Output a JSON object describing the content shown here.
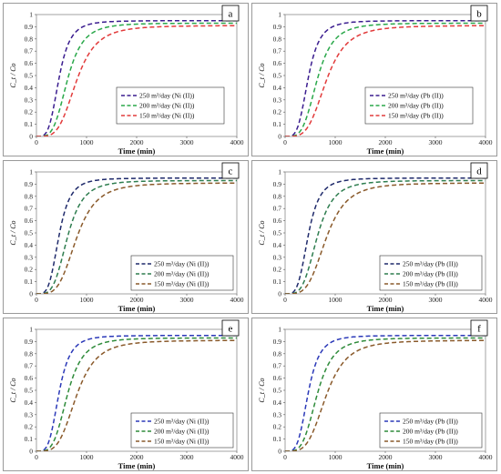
{
  "figure": {
    "panels_count": 6
  },
  "chart_data": [
    {
      "type": "line",
      "panel_label": "a",
      "ylabel": "C_t / Co",
      "xlabel": "Time (min)",
      "xlim": [
        0,
        4000
      ],
      "ylim": [
        0,
        1
      ],
      "xticks": [
        "0",
        "1000",
        "2000",
        "3000",
        "4000"
      ],
      "yticks": [
        "0",
        "0.1",
        "0.2",
        "0.3",
        "0.4",
        "0.5",
        "0.6",
        "0.7",
        "0.8",
        "0.9",
        "1"
      ],
      "legend_position": "right-middle",
      "series": [
        {
          "name": "250 m³/day (Ni (II))",
          "color": "#3b1d8f",
          "plateau": 0.95,
          "midpoint": 450
        },
        {
          "name": "200 m³/day (Ni (II))",
          "color": "#2aa84a",
          "plateau": 0.93,
          "midpoint": 620
        },
        {
          "name": "150 m³/day (Ni (II))",
          "color": "#e23b3b",
          "plateau": 0.91,
          "midpoint": 800
        }
      ]
    },
    {
      "type": "line",
      "panel_label": "b",
      "ylabel": "C_t / Co",
      "xlabel": "Time (min)",
      "xlim": [
        0,
        4000
      ],
      "ylim": [
        0,
        1
      ],
      "xticks": [
        "0",
        "1000",
        "2000",
        "3000",
        "4000"
      ],
      "yticks": [
        "0",
        "0.1",
        "0.2",
        "0.3",
        "0.4",
        "0.5",
        "0.6",
        "0.7",
        "0.8",
        "0.9",
        "1"
      ],
      "legend_position": "right-middle",
      "series": [
        {
          "name": "250 m³/day (Pb (II))",
          "color": "#3b1d8f",
          "plateau": 0.95,
          "midpoint": 460
        },
        {
          "name": "200 m³/day (Pb (II))",
          "color": "#2aa84a",
          "plateau": 0.93,
          "midpoint": 640
        },
        {
          "name": "150 m³/day (Pb (II))",
          "color": "#e23b3b",
          "plateau": 0.91,
          "midpoint": 820
        }
      ]
    },
    {
      "type": "line",
      "panel_label": "c",
      "ylabel": "C_t / Co",
      "xlabel": "Time (min)",
      "xlim": [
        0,
        4000
      ],
      "ylim": [
        0,
        1
      ],
      "xticks": [
        "0",
        "1000",
        "2000",
        "3000",
        "4000"
      ],
      "yticks": [
        "0",
        "0.1",
        "0.2",
        "0.3",
        "0.4",
        "0.5",
        "0.6",
        "0.7",
        "0.8",
        "0.9",
        "1"
      ],
      "legend_position": "bottom-right",
      "series": [
        {
          "name": "250 m³/day (Ni (II))",
          "color": "#1f2a6b",
          "plateau": 0.95,
          "midpoint": 450
        },
        {
          "name": "200 m³/day (Ni (II))",
          "color": "#2e7d4f",
          "plateau": 0.93,
          "midpoint": 620
        },
        {
          "name": "150 m³/day  (Ni (II))",
          "color": "#8a5a2b",
          "plateau": 0.91,
          "midpoint": 800
        }
      ]
    },
    {
      "type": "line",
      "panel_label": "d",
      "ylabel": "C_t / Co",
      "xlabel": "Time (min)",
      "xlim": [
        0,
        4000
      ],
      "ylim": [
        0,
        1
      ],
      "xticks": [
        "0",
        "1000",
        "2000",
        "3000",
        "4000"
      ],
      "yticks": [
        "0",
        "0.1",
        "0.2",
        "0.3",
        "0.4",
        "0.5",
        "0.6",
        "0.7",
        "0.8",
        "0.9",
        "1"
      ],
      "legend_position": "bottom-right",
      "series": [
        {
          "name": "250 m³/day (Pb (II))",
          "color": "#1f2a6b",
          "plateau": 0.95,
          "midpoint": 460
        },
        {
          "name": "200 m³/day (Pb (II))",
          "color": "#2e7d4f",
          "plateau": 0.93,
          "midpoint": 640
        },
        {
          "name": "150 m³/day (Pb (II))",
          "color": "#8a5a2b",
          "plateau": 0.91,
          "midpoint": 820
        }
      ]
    },
    {
      "type": "line",
      "panel_label": "e",
      "ylabel": "C_t / Co",
      "xlabel": "Time (min)",
      "xlim": [
        0,
        4000
      ],
      "ylim": [
        0,
        1
      ],
      "xticks": [
        "0",
        "1000",
        "2000",
        "3000",
        "4000"
      ],
      "yticks": [
        "0",
        "0.1",
        "0.2",
        "0.3",
        "0.4",
        "0.5",
        "0.6",
        "0.7",
        "0.8",
        "0.9",
        "1"
      ],
      "legend_position": "bottom-right",
      "series": [
        {
          "name": "250 m³/day (Ni (II))",
          "color": "#2b39b8",
          "plateau": 0.95,
          "midpoint": 450
        },
        {
          "name": "200 m³/day (Ni (II))",
          "color": "#2e8b3a",
          "plateau": 0.93,
          "midpoint": 620
        },
        {
          "name": "150 m³/day (Ni (II))",
          "color": "#8a5a2b",
          "plateau": 0.91,
          "midpoint": 800
        }
      ]
    },
    {
      "type": "line",
      "panel_label": "f",
      "ylabel": "C_t / Co",
      "xlabel": "Time (min)",
      "xlim": [
        0,
        4000
      ],
      "ylim": [
        0,
        1
      ],
      "xticks": [
        "0",
        "1000",
        "2000",
        "3000",
        "4000"
      ],
      "yticks": [
        "0",
        "0.1",
        "0.2",
        "0.3",
        "0.4",
        "0.5",
        "0.6",
        "0.7",
        "0.8",
        "0.9",
        "1"
      ],
      "legend_position": "bottom-right",
      "series": [
        {
          "name": "250 m³/day (Pb (II))",
          "color": "#2b39b8",
          "plateau": 0.95,
          "midpoint": 460
        },
        {
          "name": "200 m³/day (Pb (II))",
          "color": "#2e8b3a",
          "plateau": 0.93,
          "midpoint": 640
        },
        {
          "name": "150 m³/day (Pb (II))",
          "color": "#8a5a2b",
          "plateau": 0.91,
          "midpoint": 820
        }
      ]
    }
  ]
}
